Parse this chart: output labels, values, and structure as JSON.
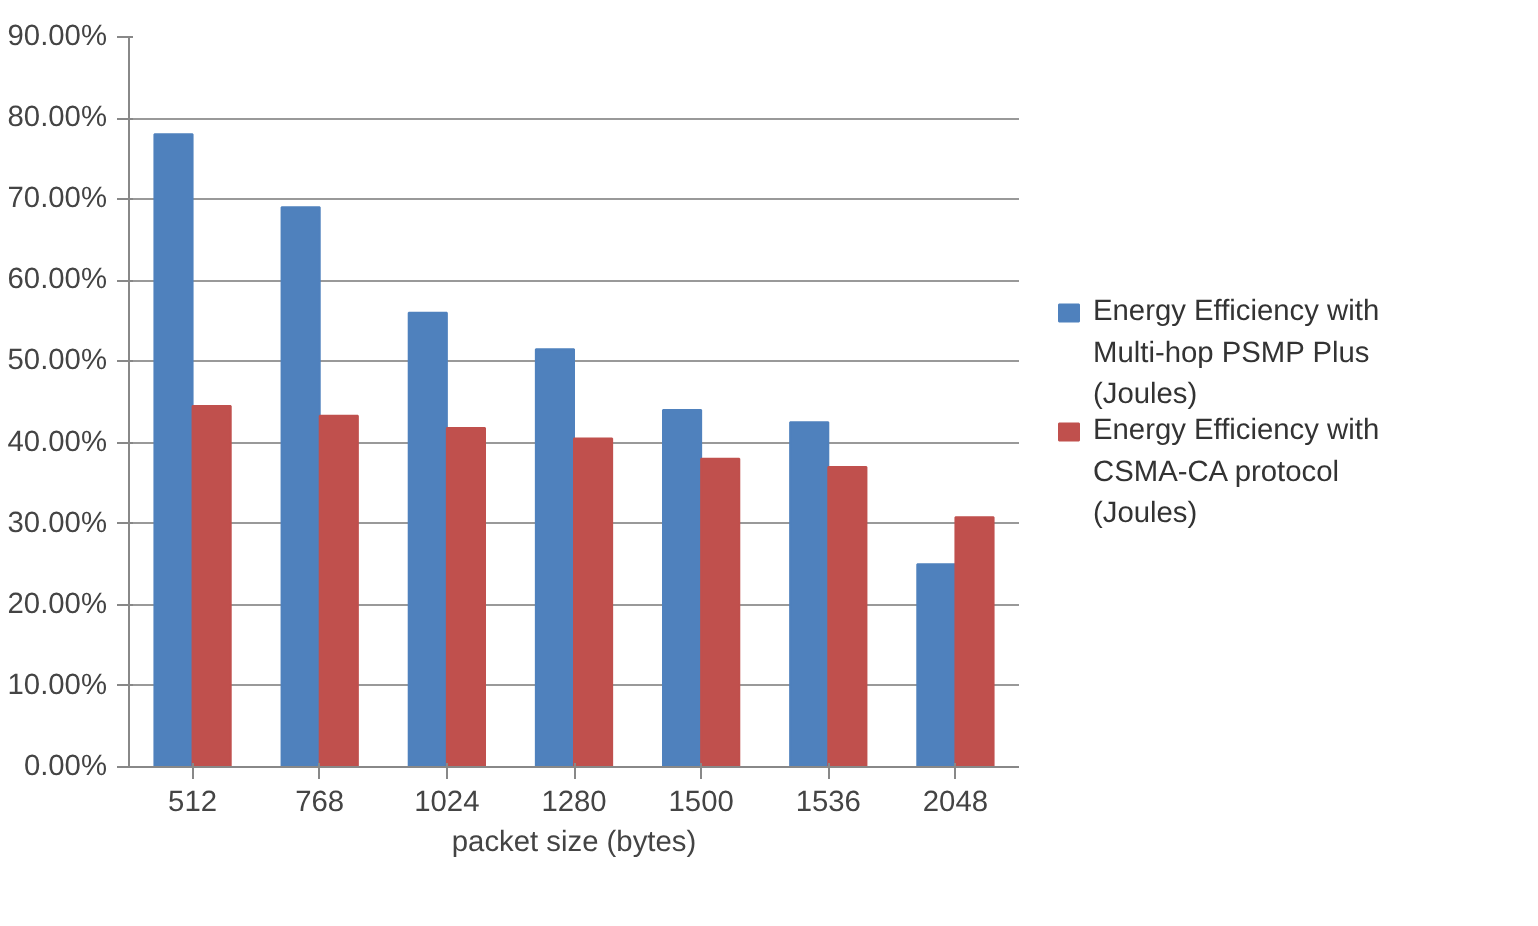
{
  "chart_data": {
    "type": "bar",
    "xlabel": "packet size (bytes)",
    "categories": [
      "512",
      "768",
      "1024",
      "1280",
      "1500",
      "1536",
      "2048"
    ],
    "series": [
      {
        "name": "Energy Efficiency with Multi-hop PSMP  Plus (Joules)",
        "color": "#4f81bd",
        "values": [
          78,
          69,
          56,
          51.5,
          44,
          42.5,
          25
        ]
      },
      {
        "name": "Energy Efficiency with CSMA-CA protocol (Joules)",
        "color": "#c0504d",
        "values": [
          44.5,
          43.3,
          41.8,
          40.5,
          38,
          37,
          30.8
        ]
      }
    ],
    "ylim": [
      0,
      90
    ],
    "yticks": [
      {
        "value": 0,
        "label": "0.00%"
      },
      {
        "value": 10,
        "label": "10.00%"
      },
      {
        "value": 20,
        "label": "20.00%"
      },
      {
        "value": 30,
        "label": "30.00%"
      },
      {
        "value": 40,
        "label": "40.00%"
      },
      {
        "value": 50,
        "label": "50.00%"
      },
      {
        "value": 60,
        "label": "60.00%"
      },
      {
        "value": 70,
        "label": "70.00%"
      },
      {
        "value": 80,
        "label": "80.00%"
      },
      {
        "value": 90,
        "label": "90.00%"
      }
    ],
    "grid": "y",
    "legend": "right"
  }
}
